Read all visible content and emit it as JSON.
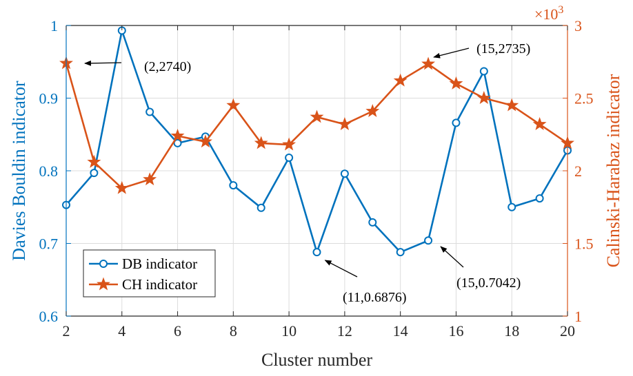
{
  "chart_data": {
    "type": "line",
    "x": [
      2,
      3,
      4,
      5,
      6,
      7,
      8,
      9,
      10,
      11,
      12,
      13,
      14,
      15,
      16,
      17,
      18,
      19,
      20
    ],
    "xlabel": "Cluster number",
    "xlim": [
      2,
      20
    ],
    "xticks": [
      2,
      4,
      6,
      8,
      10,
      12,
      14,
      16,
      18,
      20
    ],
    "y_left": {
      "label": "Davies Bouldin indicator",
      "lim": [
        0.6,
        1.0
      ],
      "ticks": [
        "0.6",
        "0.7",
        "0.8",
        "0.9",
        "1"
      ],
      "color": "#0072BD"
    },
    "y_right": {
      "label": "Calinski-Harabaz indicator",
      "lim": [
        1,
        3
      ],
      "ticks": [
        "1",
        "1.5",
        "2",
        "2.5",
        "3"
      ],
      "exponent": "×10",
      "exponent_power": "3",
      "color": "#D95319"
    },
    "series": [
      {
        "name": "DB indicator",
        "axis": "left",
        "marker": "circle",
        "color": "#0072BD",
        "values": [
          0.753,
          0.797,
          0.993,
          0.881,
          0.838,
          0.847,
          0.78,
          0.749,
          0.818,
          0.688,
          0.796,
          0.729,
          0.688,
          0.704,
          0.866,
          0.937,
          0.75,
          0.762,
          0.828
        ]
      },
      {
        "name": "CH indicator",
        "axis": "right",
        "marker": "star",
        "color": "#D95319",
        "values": [
          2.74,
          2.06,
          1.88,
          1.94,
          2.24,
          2.2,
          2.45,
          2.19,
          2.18,
          2.37,
          2.32,
          2.41,
          2.62,
          2.735,
          2.6,
          2.5,
          2.45,
          2.32,
          2.19
        ]
      }
    ],
    "annotations": [
      {
        "text": "(2,2740)",
        "axis": "right",
        "point": [
          2,
          2.74
        ]
      },
      {
        "text": "(15,2735)",
        "axis": "right",
        "point": [
          15,
          2.735
        ]
      },
      {
        "text": "(11,0.6876)",
        "axis": "left",
        "point": [
          11,
          0.688
        ]
      },
      {
        "text": "(15,0.7042)",
        "axis": "left",
        "point": [
          15,
          0.704
        ]
      }
    ],
    "legend_position": "bottom-left",
    "grid": true
  }
}
